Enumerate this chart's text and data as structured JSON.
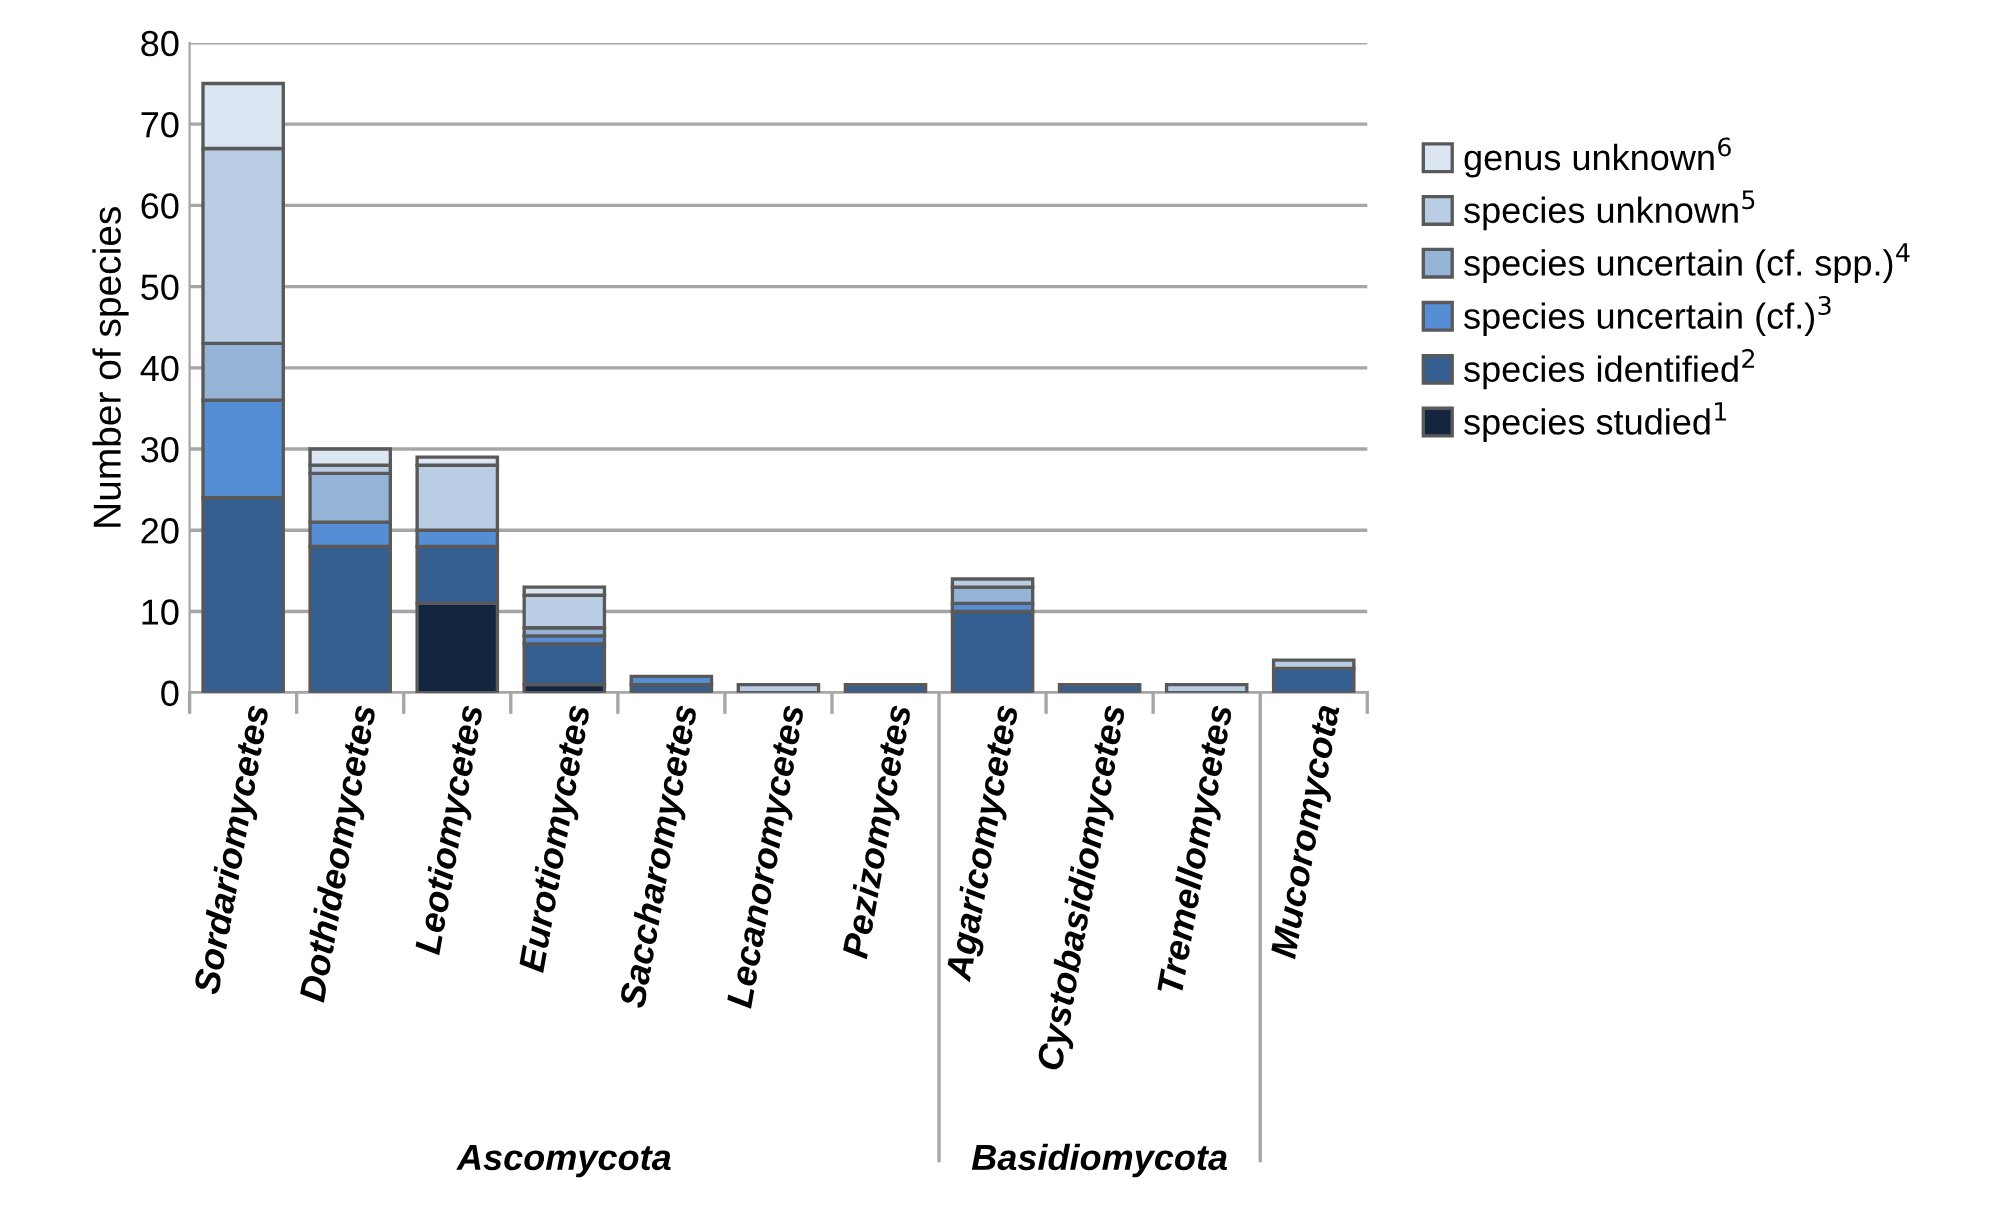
{
  "chart_data": {
    "type": "bar",
    "stacked": true,
    "ylabel": "Number of species",
    "categories": [
      "Sordariomycetes",
      "Dothideomycetes",
      "Leotiomycetes",
      "Eurotiomycetes",
      "Saccharomycetes",
      "Lecanoromycetes",
      "Pezizomycetes",
      "Agaricomycetes",
      "Cystobasidiomycetes",
      "Tremellomycetes",
      "Mucoromycota"
    ],
    "series": [
      {
        "name": "species studied$^{1}$",
        "color": "#13253f",
        "values": [
          0,
          0,
          11,
          1,
          0,
          0,
          0,
          0,
          0,
          0,
          0
        ]
      },
      {
        "name": "species identified$^{2}$",
        "color": "#355f91",
        "values": [
          24,
          18,
          7,
          5,
          1,
          0,
          1,
          10,
          1,
          0,
          3
        ]
      },
      {
        "name": "species uncertain (cf.)$^{3}$",
        "color": "#558ed5",
        "values": [
          12,
          3,
          2,
          1,
          1,
          0,
          0,
          1,
          0,
          0,
          0
        ]
      },
      {
        "name": "species uncertain (cf. spp.)$^{4}$",
        "color": "#95b3d7",
        "values": [
          7,
          6,
          0,
          1,
          0,
          0,
          0,
          2,
          0,
          0,
          0
        ]
      },
      {
        "name": "species unknown$^{5}$",
        "color": "#b9cde5",
        "values": [
          24,
          1,
          8,
          4,
          0,
          1,
          0,
          1,
          0,
          1,
          1
        ]
      },
      {
        "name": "genus unknown$^{6}$",
        "color": "#dce6f2",
        "values": [
          8,
          2,
          1,
          1,
          0,
          0,
          0,
          0,
          0,
          0,
          0
        ]
      }
    ],
    "ylim": [
      0,
      80
    ],
    "yticks": [
      0,
      10,
      20,
      30,
      40,
      50,
      60,
      70,
      80
    ],
    "grid": "y",
    "legend": "right",
    "annotations": [
      "Ascomycota",
      "Basidiomycota"
    ]
  }
}
